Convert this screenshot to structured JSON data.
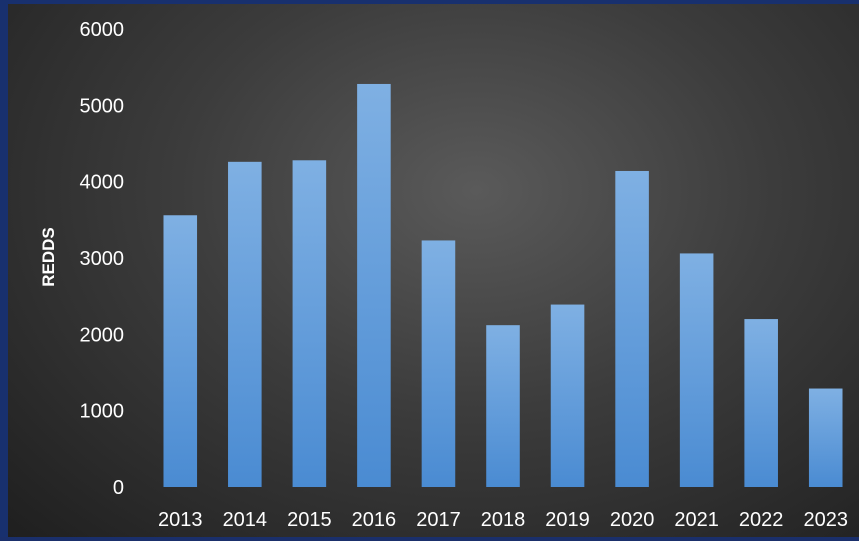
{
  "chart_data": {
    "type": "bar",
    "title": "",
    "xlabel": "",
    "ylabel": "REDDS",
    "categories": [
      "2013",
      "2014",
      "2015",
      "2016",
      "2017",
      "2018",
      "2019",
      "2020",
      "2021",
      "2022",
      "2023"
    ],
    "values": [
      3560,
      4260,
      4280,
      5280,
      3230,
      2120,
      2390,
      4140,
      3060,
      2200,
      1290
    ],
    "ylim": [
      0,
      6000
    ],
    "yticks": [
      "0",
      "1000",
      "2000",
      "3000",
      "4000",
      "5000",
      "6000"
    ],
    "grid": false,
    "legend": "none",
    "colors": {
      "bar_top": "#7fb0e3",
      "bar_bottom": "#4a8bd2",
      "text": "#ffffff",
      "background_center": "#5a5a5a",
      "background_edge": "#1f1f1f",
      "border": "#18306e"
    }
  }
}
